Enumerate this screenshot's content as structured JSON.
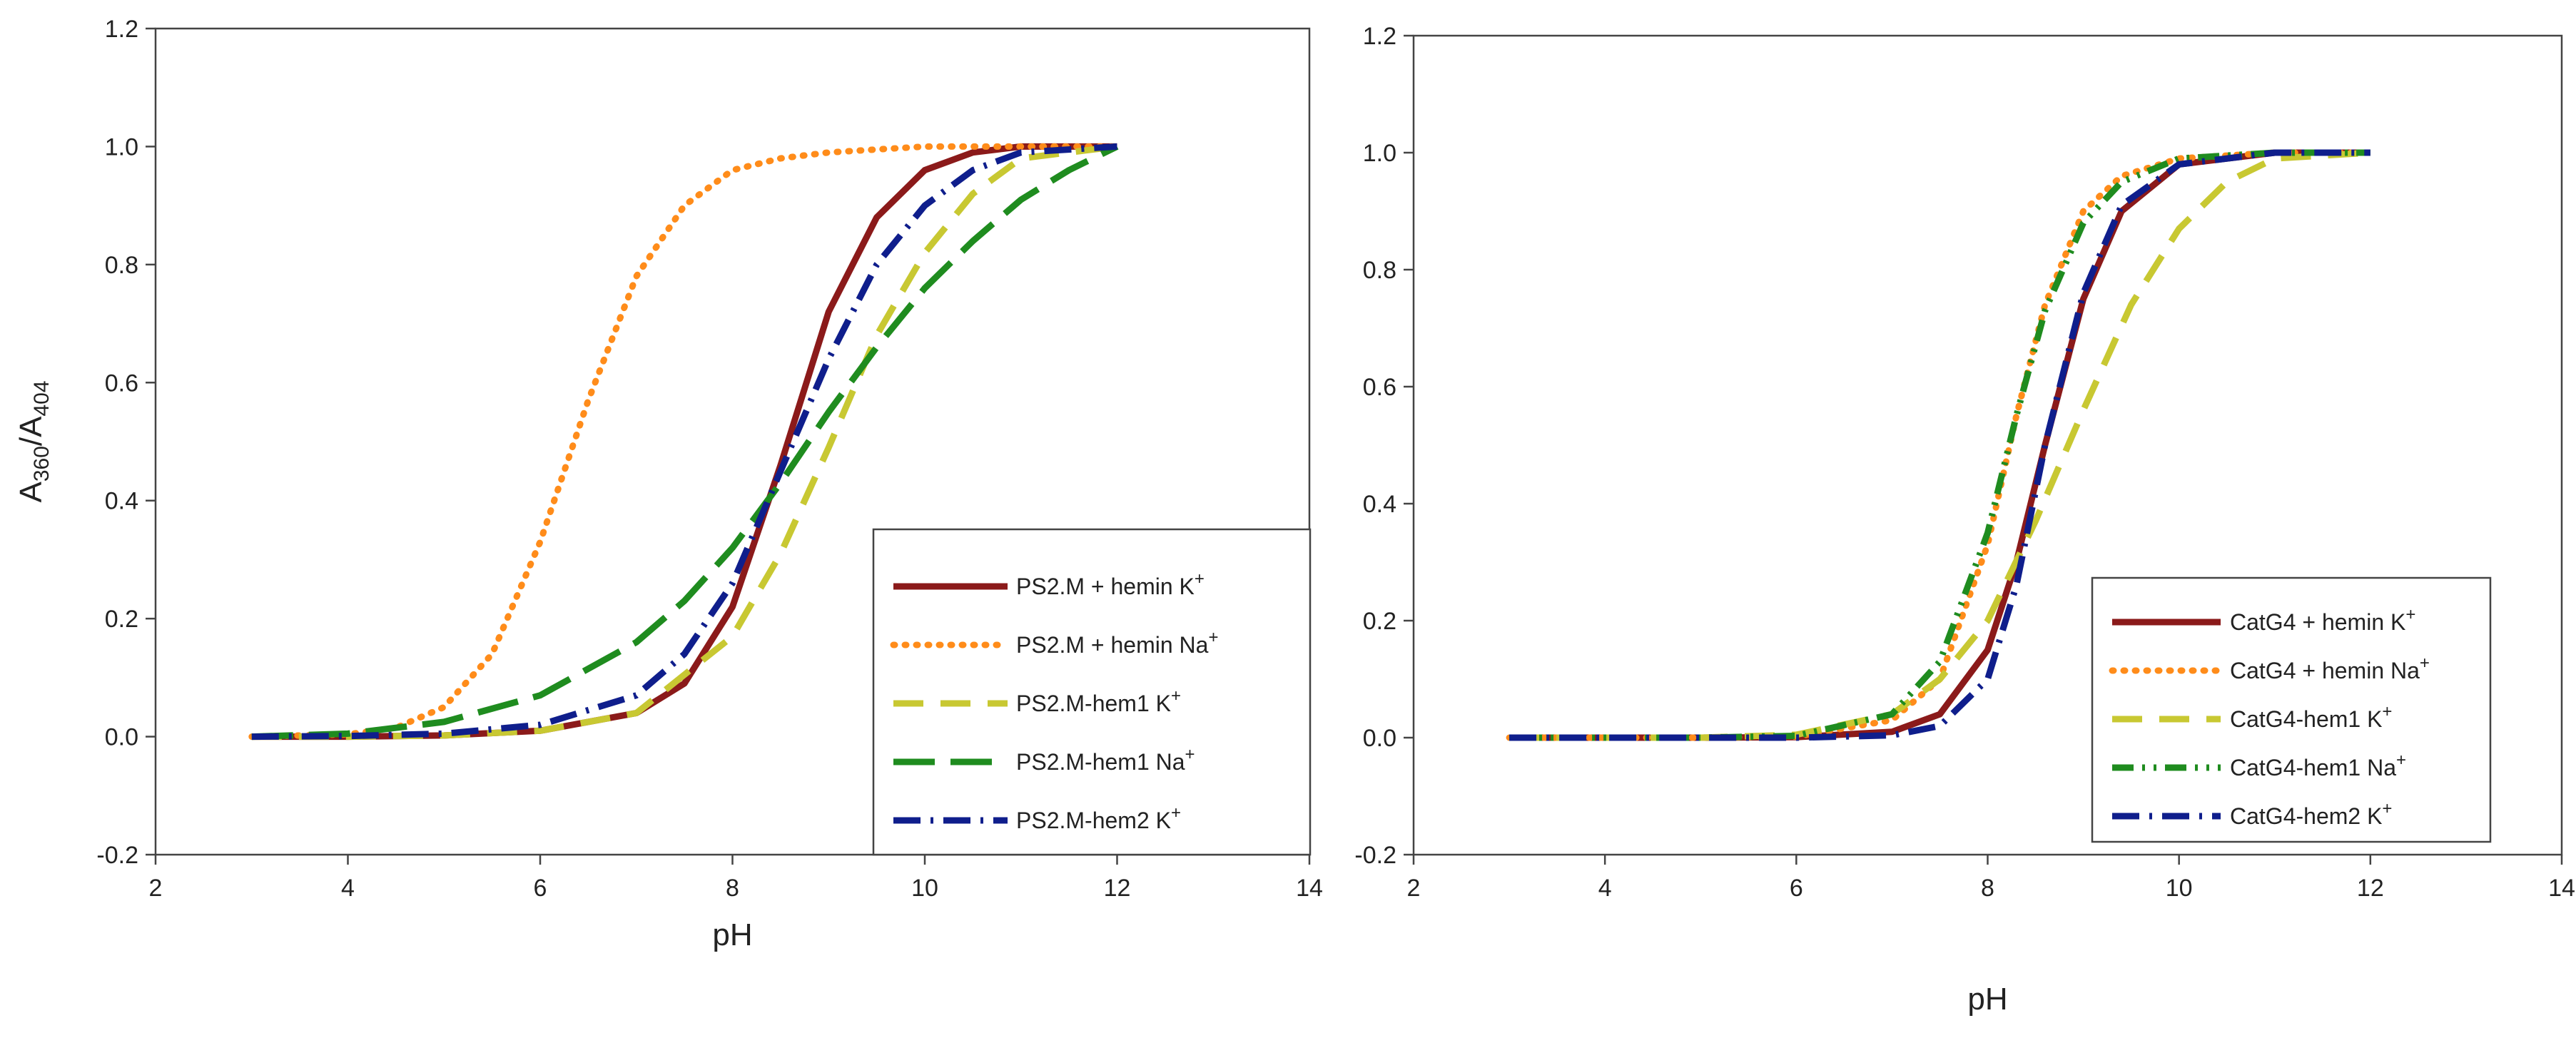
{
  "chart_data": [
    {
      "type": "line",
      "title": "",
      "xlabel": "pH",
      "ylabel_main": "A",
      "ylabel_sub1": "360",
      "ylabel_slash": "/A",
      "ylabel_sub2": "404",
      "xlim": [
        2,
        14
      ],
      "ylim": [
        -0.2,
        1.2
      ],
      "xticks": [
        2,
        4,
        6,
        8,
        10,
        12,
        14
      ],
      "yticks": [
        -0.2,
        0.0,
        0.2,
        0.4,
        0.6,
        0.8,
        1.0,
        1.2
      ],
      "xtick_labels": [
        "2",
        "4",
        "6",
        "8",
        "10",
        "12",
        "14"
      ],
      "ytick_labels": [
        "-0.2",
        "0.0",
        "0.2",
        "0.4",
        "0.6",
        "0.8",
        "1.0",
        "1.2"
      ],
      "legend_position": "bottom-right",
      "series": [
        {
          "name": "PS2.M + hemin K",
          "ion_sup": "+",
          "color": "#8b1a1a",
          "dash": "solid",
          "x": [
            3,
            4,
            5,
            6,
            7,
            7.5,
            8,
            8.5,
            9,
            9.5,
            10,
            10.5,
            11,
            12
          ],
          "y": [
            0.0,
            0.0,
            0.002,
            0.01,
            0.04,
            0.09,
            0.22,
            0.46,
            0.72,
            0.88,
            0.96,
            0.99,
            1.0,
            1.0
          ]
        },
        {
          "name": "PS2.M + hemin Na",
          "ion_sup": "+",
          "color": "#ff8c1a",
          "dash": "dotted",
          "x": [
            3,
            4,
            4.5,
            5,
            5.5,
            6,
            6.5,
            7,
            7.5,
            8,
            8.5,
            9,
            10,
            11,
            12
          ],
          "y": [
            0.0,
            0.004,
            0.015,
            0.05,
            0.14,
            0.33,
            0.57,
            0.78,
            0.9,
            0.96,
            0.98,
            0.99,
            1.0,
            1.0,
            1.0
          ]
        },
        {
          "name": "PS2.M-hem1 K",
          "ion_sup": "+",
          "color": "#c8c832",
          "dash": "dashed",
          "x": [
            3,
            4,
            5,
            6,
            7,
            8,
            8.5,
            9,
            9.5,
            10,
            10.5,
            11,
            12
          ],
          "y": [
            0.0,
            0.0,
            0.002,
            0.01,
            0.04,
            0.17,
            0.31,
            0.49,
            0.68,
            0.82,
            0.92,
            0.98,
            1.0
          ]
        },
        {
          "name": "PS2.M-hem1 Na",
          "ion_sup": "+",
          "color": "#1f8c1f",
          "dash": "longdash",
          "x": [
            3,
            4,
            5,
            6,
            7,
            7.5,
            8,
            8.5,
            9,
            9.5,
            10,
            10.5,
            11,
            11.5,
            12
          ],
          "y": [
            0.0,
            0.005,
            0.025,
            0.07,
            0.16,
            0.23,
            0.32,
            0.43,
            0.55,
            0.66,
            0.76,
            0.84,
            0.91,
            0.96,
            1.0
          ]
        },
        {
          "name": "PS2.M-hem2 K",
          "ion_sup": "+",
          "color": "#0f1e8c",
          "dash": "dashdot",
          "x": [
            3,
            4,
            5,
            6,
            7,
            7.5,
            8,
            8.5,
            9,
            9.5,
            10,
            10.5,
            11,
            12
          ],
          "y": [
            0.0,
            0.001,
            0.005,
            0.02,
            0.07,
            0.14,
            0.26,
            0.45,
            0.64,
            0.8,
            0.9,
            0.96,
            0.99,
            1.0
          ]
        }
      ]
    },
    {
      "type": "line",
      "title": "",
      "xlabel": "pH",
      "xlim": [
        2,
        14
      ],
      "ylim": [
        -0.2,
        1.2
      ],
      "xticks": [
        2,
        4,
        6,
        8,
        10,
        12,
        14
      ],
      "yticks": [
        -0.2,
        0.0,
        0.2,
        0.4,
        0.6,
        0.8,
        1.0,
        1.2
      ],
      "xtick_labels": [
        "2",
        "4",
        "6",
        "8",
        "10",
        "12",
        "14"
      ],
      "ytick_labels": [
        "-0.2",
        "0.0",
        "0.2",
        "0.4",
        "0.6",
        "0.8",
        "1.0",
        "1.2"
      ],
      "legend_position": "bottom-right",
      "series": [
        {
          "name": "CatG4 + hemin K",
          "ion_sup": "+",
          "color": "#8b1a1a",
          "dash": "solid",
          "x": [
            3,
            4,
            5,
            6,
            7,
            7.5,
            8,
            8.3,
            8.6,
            9,
            9.4,
            10,
            11,
            12
          ],
          "y": [
            0.0,
            0.0,
            0.0,
            0.001,
            0.01,
            0.04,
            0.15,
            0.3,
            0.5,
            0.75,
            0.9,
            0.98,
            1.0,
            1.0
          ]
        },
        {
          "name": "CatG4 + hemin Na",
          "ion_sup": "+",
          "color": "#ff8c1a",
          "dash": "dotted",
          "x": [
            3,
            4,
            5,
            6,
            7,
            7.5,
            8,
            8.3,
            8.6,
            9,
            9.4,
            10,
            11,
            12
          ],
          "y": [
            0.0,
            0.0,
            0.0,
            0.002,
            0.03,
            0.1,
            0.33,
            0.55,
            0.74,
            0.9,
            0.96,
            0.99,
            1.0,
            1.0
          ]
        },
        {
          "name": "CatG4-hem1 K",
          "ion_sup": "+",
          "color": "#c8c832",
          "dash": "dashed",
          "x": [
            3,
            4,
            5,
            6,
            7,
            7.5,
            8,
            8.5,
            9,
            9.5,
            10,
            10.5,
            11,
            12
          ],
          "y": [
            0.0,
            0.0,
            0.0,
            0.005,
            0.04,
            0.1,
            0.2,
            0.37,
            0.56,
            0.74,
            0.87,
            0.95,
            0.99,
            1.0
          ]
        },
        {
          "name": "CatG4-hem1 Na",
          "ion_sup": "+",
          "color": "#1f8c1f",
          "dash": "dashdotdot",
          "x": [
            3,
            4,
            5,
            6,
            7,
            7.5,
            8,
            8.3,
            8.6,
            9,
            9.4,
            10,
            11,
            12
          ],
          "y": [
            0.0,
            0.0,
            0.0,
            0.003,
            0.04,
            0.13,
            0.35,
            0.55,
            0.73,
            0.88,
            0.95,
            0.99,
            1.0,
            1.0
          ]
        },
        {
          "name": "CatG4-hem2 K",
          "ion_sup": "+",
          "color": "#0f1e8c",
          "dash": "dashdot",
          "x": [
            3,
            4,
            5,
            6,
            7,
            7.5,
            8,
            8.3,
            8.6,
            9,
            9.4,
            10,
            11,
            12
          ],
          "y": [
            0.0,
            0.0,
            0.0,
            0.0,
            0.004,
            0.02,
            0.1,
            0.26,
            0.5,
            0.76,
            0.91,
            0.98,
            1.0,
            1.0
          ]
        }
      ]
    }
  ]
}
